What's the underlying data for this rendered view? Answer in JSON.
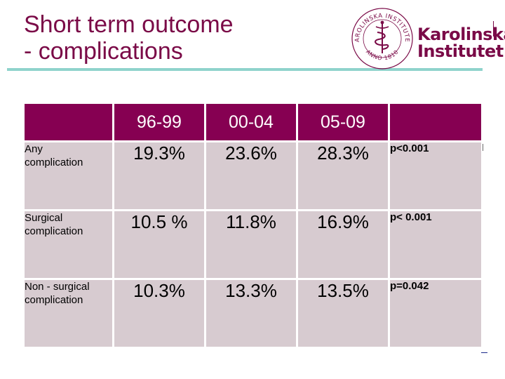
{
  "title": {
    "line1": "Short term outcome",
    "line2": "- complications"
  },
  "logo": {
    "word1": "Karolinska",
    "word2": "Institutet",
    "seal_ring_text": "KAROLINSKA INSTITUTET",
    "seal_bottom_text": "ANNO 1810"
  },
  "table": {
    "columns": [
      "",
      "96-99",
      "00-04",
      "05-09",
      ""
    ],
    "rows": [
      {
        "label": [
          "Any",
          "complication"
        ],
        "values": [
          "19.3%",
          "23.6%",
          "28.3%"
        ],
        "p": "p<0.001"
      },
      {
        "label": [
          "Surgical",
          "complication"
        ],
        "values": [
          "10.5 %",
          "11.8%",
          "16.9%"
        ],
        "p": "p< 0.001"
      },
      {
        "label": [
          "Non - surgical",
          "complication"
        ],
        "values": [
          "10.3%",
          "13.3%",
          "13.5%"
        ],
        "p": "p=0.042"
      }
    ]
  },
  "colors": {
    "brand": "#7a0a47",
    "header_fill": "#860052",
    "cell_fill": "#d7cbd0",
    "rule": "#8fd3cc"
  }
}
